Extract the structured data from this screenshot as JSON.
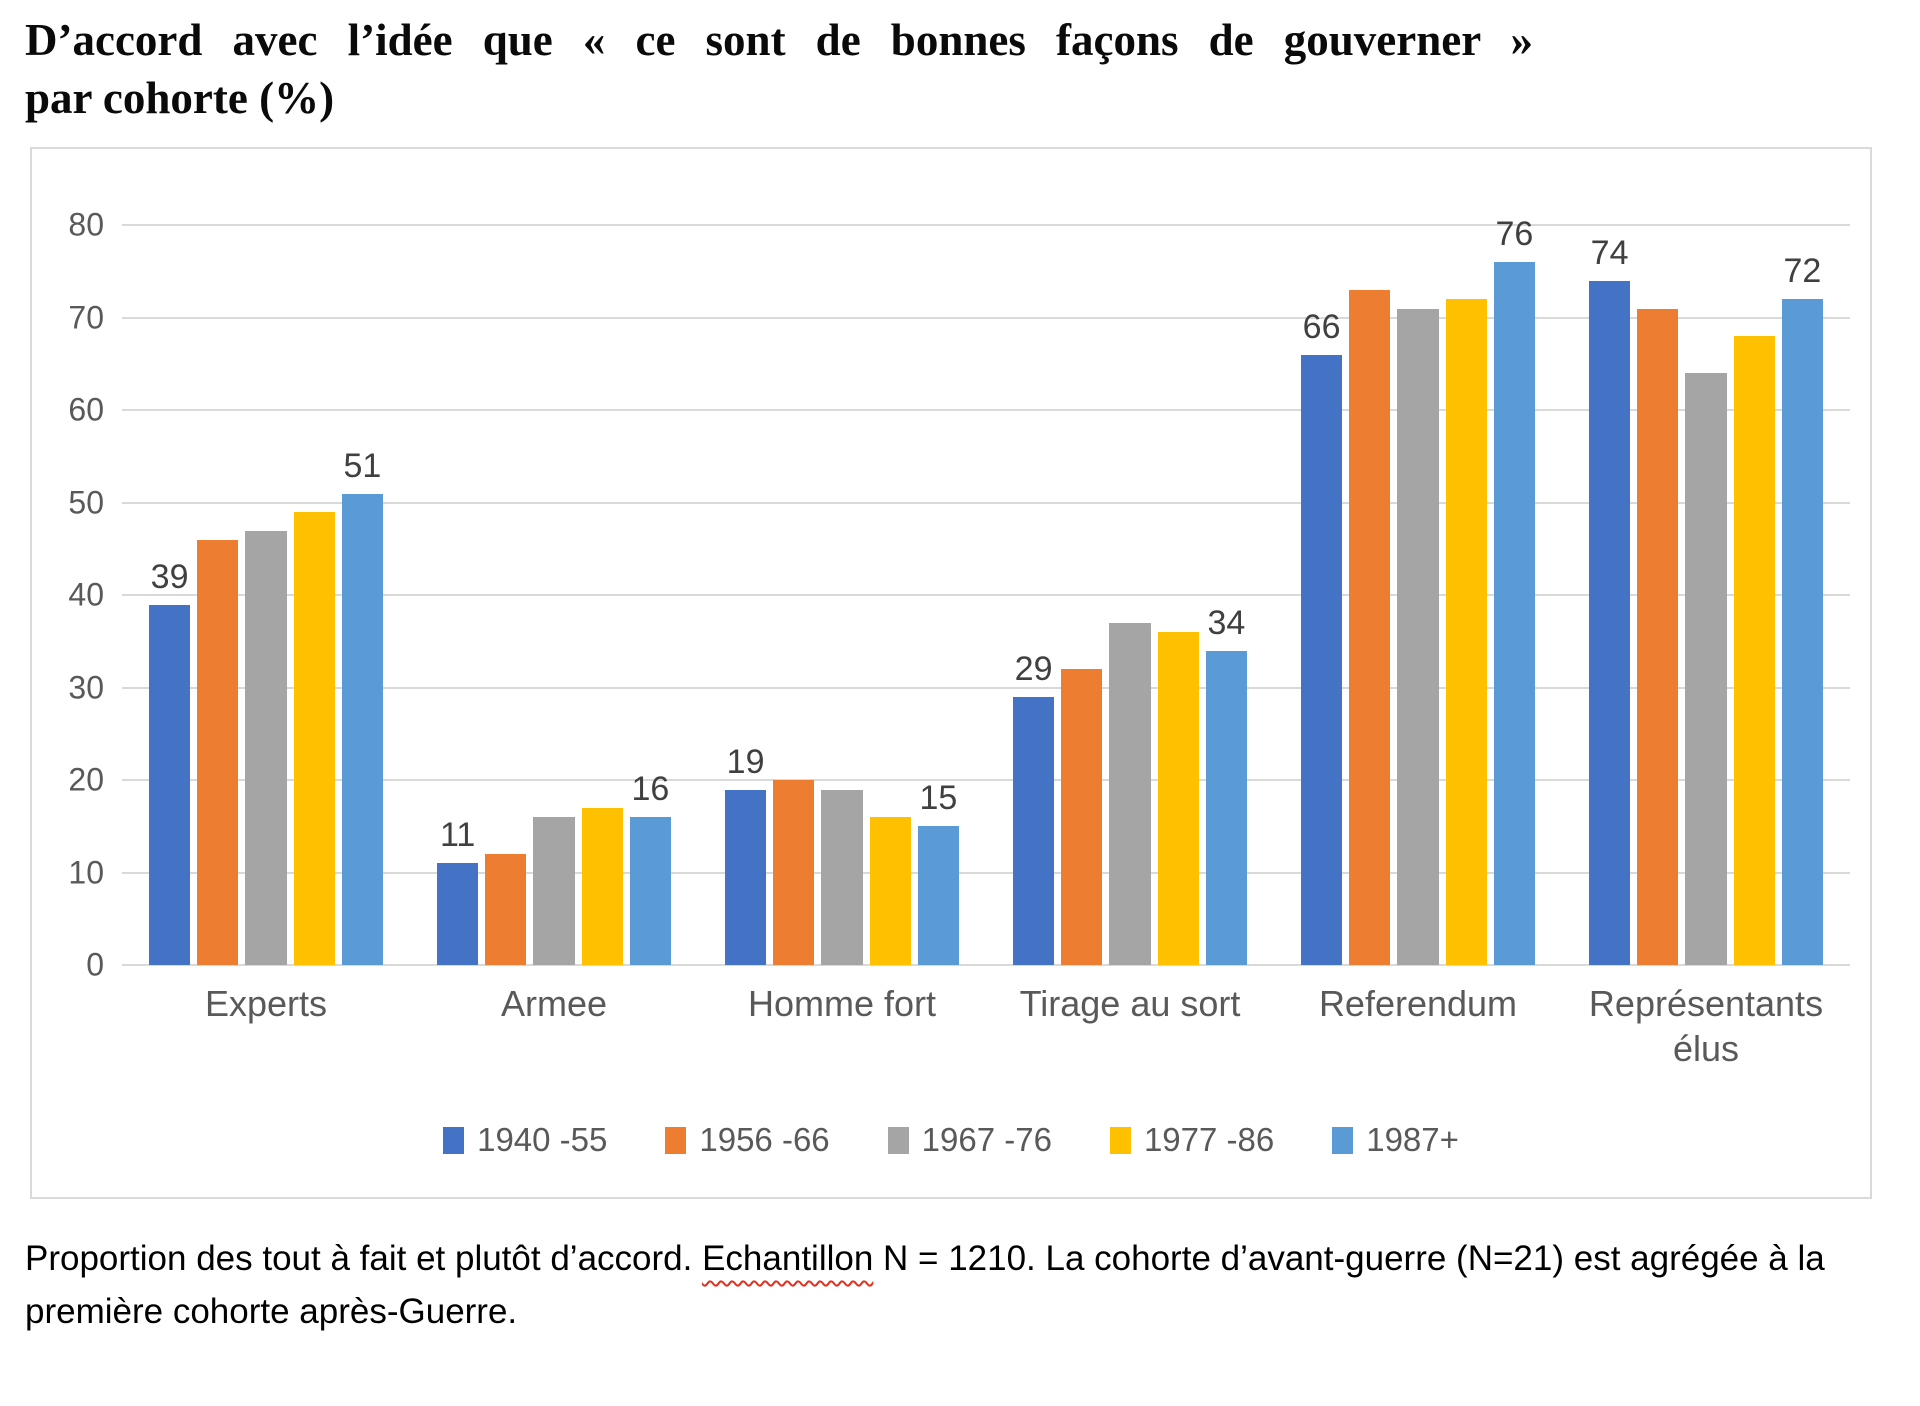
{
  "title": {
    "full": "D’accord avec l’idée que « ce sont de bonnes façons de gouverner » par cohorte (%)",
    "line1": "D’accord avec l’idée que « ce sont de bonnes façons de gouverner »",
    "line2": "par cohorte (%)"
  },
  "chart_data": {
    "type": "bar",
    "title": "D’accord avec l’idée que « ce sont de bonnes façons de gouverner » par cohorte (%)",
    "categories": [
      "Experts",
      "Armee",
      "Homme fort",
      "Tirage au sort",
      "Referendum",
      "Représentants élus"
    ],
    "series": [
      {
        "name": "1940 -55",
        "color": "#4472c4",
        "labels_shown": true,
        "values": [
          39,
          11,
          19,
          29,
          66,
          74
        ]
      },
      {
        "name": "1956 -66",
        "color": "#ed7d31",
        "labels_shown": false,
        "values": [
          46,
          12,
          20,
          32,
          73,
          71
        ]
      },
      {
        "name": "1967 -76",
        "color": "#a5a5a5",
        "labels_shown": false,
        "values": [
          47,
          16,
          19,
          37,
          71,
          64
        ]
      },
      {
        "name": "1977 -86",
        "color": "#ffc000",
        "labels_shown": false,
        "values": [
          49,
          17,
          16,
          36,
          72,
          68
        ]
      },
      {
        "name": "1987+",
        "color": "#5b9bd5",
        "labels_shown": true,
        "values": [
          51,
          16,
          15,
          34,
          76,
          72
        ]
      }
    ],
    "y_axis": {
      "min": 0,
      "max": 80,
      "step": 10,
      "ticks": [
        "0",
        "10",
        "20",
        "30",
        "40",
        "50",
        "60",
        "70",
        "80"
      ]
    },
    "xlabel": "",
    "ylabel": "",
    "grid": true,
    "legend_position": "bottom"
  },
  "footnote": {
    "part1": "Proportion des tout à fait et plutôt d’accord. ",
    "misspelled": "Echantillon",
    "part2": " N = 1210. La cohorte d’avant-guerre (N=21) est agrégée à la première cohorte après-Guerre."
  },
  "colors": {
    "gridline": "#d9d9d9",
    "axis_text": "#595959",
    "data_label_text": "#404040",
    "spellcheck_underline": "#e0301e"
  }
}
